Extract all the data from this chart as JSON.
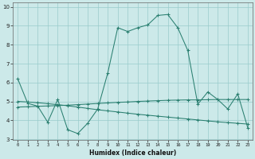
{
  "xlabel": "Humidex (Indice chaleur)",
  "x_values": [
    0,
    1,
    2,
    3,
    4,
    5,
    6,
    7,
    8,
    9,
    10,
    11,
    12,
    13,
    14,
    15,
    16,
    17,
    18,
    19,
    20,
    21,
    22,
    23
  ],
  "line1_y": [
    6.2,
    4.9,
    4.75,
    3.9,
    5.1,
    3.5,
    3.3,
    3.85,
    4.6,
    6.5,
    8.9,
    8.7,
    8.9,
    9.05,
    9.55,
    9.6,
    8.9,
    7.7,
    4.85,
    5.5,
    5.1,
    4.6,
    5.4,
    3.6
  ],
  "line2_y": [
    4.7,
    4.72,
    4.74,
    4.76,
    4.78,
    4.8,
    4.83,
    4.86,
    4.89,
    4.92,
    4.95,
    4.97,
    5.0,
    5.02,
    5.04,
    5.06,
    5.07,
    5.08,
    5.08,
    5.09,
    5.1,
    5.1,
    5.1,
    5.1
  ],
  "line3_y": [
    5.0,
    4.97,
    4.93,
    4.88,
    4.83,
    4.77,
    4.7,
    4.63,
    4.56,
    4.5,
    4.44,
    4.38,
    4.32,
    4.27,
    4.22,
    4.17,
    4.12,
    4.07,
    4.02,
    3.97,
    3.92,
    3.88,
    3.84,
    3.8
  ],
  "line_color": "#2a7f70",
  "bg_color": "#cce9e9",
  "grid_color": "#99cccc",
  "ylim": [
    2.95,
    10.25
  ],
  "xlim": [
    -0.5,
    23.5
  ],
  "yticks": [
    3,
    4,
    5,
    6,
    7,
    8,
    9,
    10
  ],
  "xticks": [
    0,
    1,
    2,
    3,
    4,
    5,
    6,
    7,
    8,
    9,
    10,
    11,
    12,
    13,
    14,
    15,
    16,
    17,
    18,
    19,
    20,
    21,
    22,
    23
  ]
}
